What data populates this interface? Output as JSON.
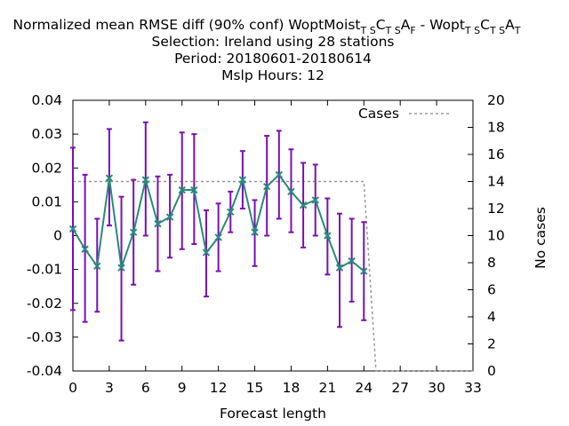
{
  "chart_data": {
    "type": "line",
    "title": {
      "line1_prefix": "Normalized mean RMSE diff (90% conf) WoptMoist",
      "line1_sub1": "T S",
      "line1_c1": "C",
      "line1_sub2": "T S",
      "line1_a1": "A",
      "line1_sub3": "F",
      "line1_mid": " - Wopt",
      "line1_sub4": "T S",
      "line1_c2": "C",
      "line1_sub5": "T S",
      "line1_a2": "A",
      "line1_sub6": "T",
      "line2": "Selection: Ireland using    28 stations",
      "line3": "Period: 20180601-20180614",
      "line4": "Mslp   Hours:  12"
    },
    "xlabel": "Forecast length",
    "ylabel_right": "No cases",
    "xlim": [
      0,
      33
    ],
    "ylim": [
      -0.04,
      0.04
    ],
    "y2lim": [
      0,
      20
    ],
    "x_ticks": [
      "0",
      "3",
      "6",
      "9",
      "12",
      "15",
      "18",
      "21",
      "24",
      "27",
      "30",
      "33"
    ],
    "y_ticks": [
      "0.04",
      "0.03",
      "0.02",
      "0.01",
      "0",
      "-0.01",
      "-0.02",
      "-0.03",
      "-0.04"
    ],
    "y2_ticks": [
      "20",
      "18",
      "16",
      "14",
      "12",
      "10",
      "8",
      "6",
      "4",
      "2",
      "0"
    ],
    "legend": {
      "label": "Cases",
      "position": "top-right"
    },
    "colors": {
      "line": "#2a8a7a",
      "marker": "#2a8a7a",
      "errorbar": "#7a0fb5",
      "cases": "#999999"
    },
    "series": {
      "x": [
        0,
        1,
        2,
        3,
        4,
        5,
        6,
        7,
        8,
        9,
        10,
        11,
        12,
        13,
        14,
        15,
        16,
        17,
        18,
        19,
        20,
        21,
        22,
        23,
        24
      ],
      "y": [
        0.002,
        -0.004,
        -0.009,
        0.017,
        -0.0095,
        0.001,
        0.0165,
        0.0035,
        0.0055,
        0.0135,
        0.0135,
        -0.005,
        -0.0005,
        0.007,
        0.0165,
        0.001,
        0.0145,
        0.018,
        0.013,
        0.009,
        0.0105,
        0.0,
        -0.0095,
        -0.0075,
        -0.0105
      ],
      "err_low": [
        -0.022,
        -0.0255,
        -0.0225,
        0.003,
        -0.031,
        -0.0145,
        0.0,
        -0.0105,
        -0.0065,
        -0.004,
        -0.0025,
        -0.018,
        -0.0105,
        0.001,
        0.008,
        -0.009,
        0.0,
        0.005,
        0.001,
        -0.0035,
        0.0,
        -0.0115,
        -0.027,
        -0.0195,
        -0.025
      ],
      "err_high": [
        0.026,
        0.018,
        0.005,
        0.0315,
        0.0115,
        0.0165,
        0.0335,
        0.0175,
        0.018,
        0.0305,
        0.03,
        0.0075,
        0.0095,
        0.013,
        0.025,
        0.0105,
        0.0295,
        0.031,
        0.0255,
        0.0215,
        0.021,
        0.011,
        0.0065,
        0.005,
        0.004
      ]
    },
    "cases": {
      "x": [
        0,
        24,
        25,
        33
      ],
      "y": [
        14,
        14,
        0,
        0
      ]
    }
  }
}
